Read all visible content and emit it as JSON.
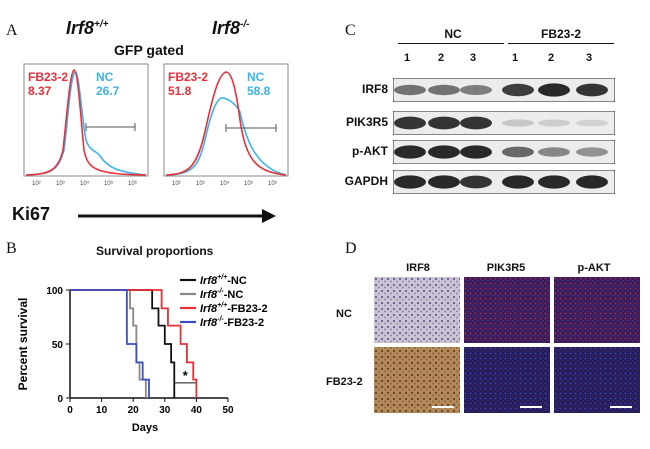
{
  "panels": {
    "a": "A",
    "b": "B",
    "c": "C",
    "d": "D"
  },
  "flow": {
    "genotype_wt": "Irf8",
    "genotype_wt_sup": "+/+",
    "genotype_ko": "Irf8",
    "genotype_ko_sup": "-/-",
    "gate_title": "GFP gated",
    "xlabel": "Ki67",
    "left": {
      "fb_label": "FB23-2",
      "fb_value": "8.37",
      "nc_label": "NC",
      "nc_value": "26.7"
    },
    "right": {
      "fb_label": "FB23-2",
      "fb_value": "51.8",
      "nc_label": "NC",
      "nc_value": "58.8"
    },
    "ticks": [
      "10²",
      "10³",
      "10⁴",
      "10⁵",
      "10⁶"
    ],
    "colors": {
      "fb": "#e8303a",
      "nc": "#3db3e6"
    }
  },
  "chart_data": {
    "type": "line",
    "title": "Survival proportions",
    "xlabel": "Days",
    "ylabel": "Percent survival",
    "xlim": [
      0,
      50
    ],
    "ylim": [
      0,
      100
    ],
    "xticks": [
      0,
      10,
      20,
      30,
      40,
      50
    ],
    "yticks": [
      0,
      50,
      100
    ],
    "legend_position": "right",
    "significance": "*",
    "series": [
      {
        "name": "Irf8+/+-NC",
        "legend_main": "Irf8",
        "legend_sup": "+/+",
        "legend_suffix": "-NC",
        "color": "#111111",
        "x": [
          0,
          26,
          26,
          28,
          28,
          30,
          30,
          32,
          32,
          33,
          33
        ],
        "y": [
          100,
          100,
          83,
          83,
          67,
          67,
          50,
          50,
          33,
          33,
          0
        ]
      },
      {
        "name": "Irf8-/--NC",
        "legend_main": "Irf8",
        "legend_sup": "-/-",
        "legend_suffix": "-NC",
        "color": "#888888",
        "x": [
          0,
          19,
          19,
          20,
          20,
          21,
          21,
          22,
          22,
          24,
          24
        ],
        "y": [
          100,
          100,
          83,
          83,
          67,
          67,
          33,
          33,
          17,
          17,
          0
        ]
      },
      {
        "name": "Irf8+/+-FB23-2",
        "legend_main": "Irf8",
        "legend_sup": "+/+",
        "legend_suffix": "-FB23-2",
        "color": "#e8303a",
        "x": [
          0,
          29,
          29,
          31,
          31,
          35,
          35,
          37,
          37,
          39,
          39,
          40,
          40
        ],
        "y": [
          100,
          100,
          83,
          83,
          67,
          67,
          50,
          50,
          33,
          33,
          17,
          17,
          0
        ]
      },
      {
        "name": "Irf8-/--FB23-2",
        "legend_main": "Irf8",
        "legend_sup": "-/-",
        "legend_suffix": "-FB23-2",
        "color": "#3a4fc4",
        "x": [
          0,
          18,
          18,
          21,
          21,
          23,
          23,
          25,
          25
        ],
        "y": [
          100,
          100,
          50,
          50,
          33,
          33,
          17,
          17,
          0
        ]
      }
    ]
  },
  "western": {
    "group_nc": "NC",
    "group_fb": "FB23-2",
    "lanes": [
      "1",
      "2",
      "3",
      "1",
      "2",
      "3"
    ],
    "rows": [
      {
        "label": "IRF8",
        "intensity": [
          0.55,
          0.55,
          0.5,
          0.8,
          0.9,
          0.85
        ]
      },
      {
        "label": "PIK3R5",
        "intensity": [
          0.85,
          0.85,
          0.85,
          0.15,
          0.12,
          0.1
        ]
      },
      {
        "label": "p-AKT",
        "intensity": [
          0.9,
          0.9,
          0.9,
          0.6,
          0.45,
          0.4
        ]
      },
      {
        "label": "GAPDH",
        "intensity": [
          0.9,
          0.9,
          0.85,
          0.9,
          0.9,
          0.9
        ]
      }
    ]
  },
  "ihc": {
    "columns": [
      "IRF8",
      "PIK3R5",
      "p-AKT"
    ],
    "rows": [
      "NC",
      "FB23-2"
    ]
  }
}
